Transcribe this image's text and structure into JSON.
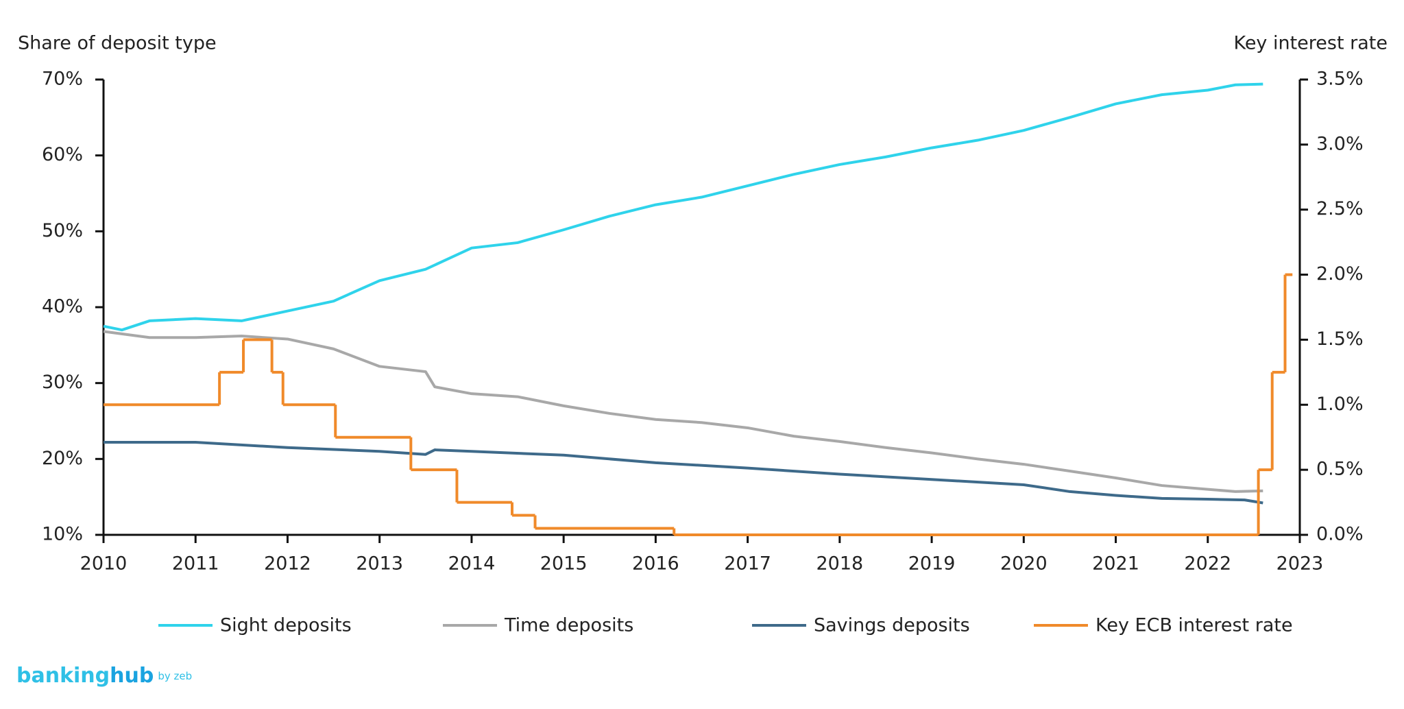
{
  "chart_data": {
    "type": "line",
    "y_axis_title": "Share of deposit type",
    "y2_axis_title": "Key interest rate",
    "xlim": [
      2010,
      2023
    ],
    "xticks": [
      2010,
      2011,
      2012,
      2013,
      2014,
      2015,
      2016,
      2017,
      2018,
      2019,
      2020,
      2021,
      2022,
      2023
    ],
    "ylim": [
      10,
      70
    ],
    "yticks": [
      {
        "value": 10,
        "label": "10%"
      },
      {
        "value": 20,
        "label": "20%"
      },
      {
        "value": 30,
        "label": "30%"
      },
      {
        "value": 40,
        "label": "40%"
      },
      {
        "value": 50,
        "label": "50%"
      },
      {
        "value": 60,
        "label": "60%"
      },
      {
        "value": 70,
        "label": "70%"
      }
    ],
    "y2lim": [
      0,
      3.5
    ],
    "y2ticks": [
      {
        "value": 0,
        "label": "0.0%"
      },
      {
        "value": 0.5,
        "label": "0.5%"
      },
      {
        "value": 1,
        "label": "1.0%"
      },
      {
        "value": 1.5,
        "label": "1.5%"
      },
      {
        "value": 2,
        "label": "2.0%"
      },
      {
        "value": 2.5,
        "label": "2.5%"
      },
      {
        "value": 3,
        "label": "3.0%"
      },
      {
        "value": 3.5,
        "label": "3.5%"
      }
    ],
    "grid": false,
    "legend": "bottom",
    "series": [
      {
        "name": "Sight deposits",
        "color": "#2fd3eb",
        "x": [
          2010,
          2010.2,
          2010.5,
          2011,
          2011.5,
          2012,
          2012.5,
          2013,
          2013.5,
          2014,
          2014.5,
          2015,
          2015.5,
          2016,
          2016.5,
          2017,
          2017.5,
          2018,
          2018.5,
          2019,
          2019.5,
          2020,
          2020.5,
          2021,
          2021.5,
          2022,
          2022.3,
          2022.6
        ],
        "values": [
          37.5,
          37,
          38.2,
          38.5,
          38.2,
          39.5,
          40.8,
          43.5,
          45,
          47.8,
          48.5,
          50.2,
          52,
          53.5,
          54.5,
          56,
          57.5,
          58.8,
          59.8,
          61,
          62,
          63.3,
          65,
          66.8,
          68,
          68.6,
          69.3,
          69.4
        ]
      },
      {
        "name": "Time deposits",
        "color": "#a8a8a8",
        "x": [
          2010,
          2010.5,
          2011,
          2011.5,
          2012,
          2012.5,
          2013,
          2013.5,
          2013.6,
          2014,
          2014.5,
          2015,
          2015.5,
          2016,
          2016.5,
          2017,
          2017.5,
          2018,
          2018.5,
          2019,
          2019.5,
          2020,
          2020.5,
          2021,
          2021.5,
          2022,
          2022.3,
          2022.6
        ],
        "values": [
          36.8,
          36,
          36,
          36.2,
          35.8,
          34.5,
          32.2,
          31.5,
          29.5,
          28.6,
          28.2,
          27,
          26,
          25.2,
          24.8,
          24.1,
          23,
          22.3,
          21.5,
          20.8,
          20,
          19.3,
          18.4,
          17.5,
          16.5,
          16,
          15.7,
          15.8
        ]
      },
      {
        "name": "Savings deposits",
        "color": "#3e6a8a",
        "x": [
          2010,
          2011,
          2012,
          2013,
          2013.5,
          2013.6,
          2014,
          2015,
          2016,
          2017,
          2018,
          2019,
          2020,
          2020.5,
          2021,
          2021.5,
          2022,
          2022.4,
          2022.6
        ],
        "values": [
          22.2,
          22.2,
          21.5,
          21,
          20.6,
          21.2,
          21,
          20.5,
          19.5,
          18.8,
          18,
          17.3,
          16.6,
          15.7,
          15.2,
          14.8,
          14.7,
          14.6,
          14.2
        ]
      },
      {
        "name": "Key ECB interest rate",
        "color": "#f08a2a",
        "axis": "y2",
        "step": "post",
        "x": [
          2010,
          2011.26,
          2011.52,
          2011.83,
          2011.95,
          2012.52,
          2013.34,
          2013.84,
          2014.44,
          2014.69,
          2016.2,
          2022.55,
          2022.7,
          2022.84,
          2022.92
        ],
        "values": [
          1,
          1.25,
          1.5,
          1.25,
          1,
          0.75,
          0.5,
          0.25,
          0.15,
          0.05,
          0,
          0.5,
          1.25,
          2,
          2
        ]
      }
    ]
  },
  "logo": {
    "main": "banking",
    "bold": "hub",
    "by": "by zeb"
  }
}
